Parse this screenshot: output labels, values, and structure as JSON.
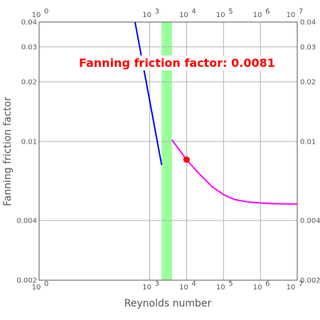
{
  "chart_data": {
    "type": "line",
    "xlabel": "Reynolds number",
    "ylabel": "Fanning friction factor",
    "x_scale": "log",
    "y_scale": "log",
    "xlim": [
      1,
      10000000
    ],
    "ylim": [
      0.002,
      0.04
    ],
    "grid": true,
    "x_ticks": [
      {
        "value": 1,
        "label": "10",
        "exp": "0"
      },
      {
        "value": 1000,
        "label": "10",
        "exp": "3"
      },
      {
        "value": 10000,
        "label": "10",
        "exp": "4"
      },
      {
        "value": 100000,
        "label": "10",
        "exp": "5"
      },
      {
        "value": 1000000,
        "label": "10",
        "exp": "6"
      },
      {
        "value": 10000000,
        "label": "10",
        "exp": "7"
      }
    ],
    "y_ticks": [
      {
        "value": 0.04,
        "label": "0.04"
      },
      {
        "value": 0.03,
        "label": "0.03"
      },
      {
        "value": 0.02,
        "label": "0.02"
      },
      {
        "value": 0.01,
        "label": "0.01"
      },
      {
        "value": 0.004,
        "label": "0.004"
      },
      {
        "value": 0.002,
        "label": "0.002"
      }
    ],
    "transition_band": {
      "x_from": 2100,
      "x_to": 4000,
      "color": "#99ff99"
    },
    "series": [
      {
        "color": "#0000ff",
        "x": [
          400,
          2100
        ],
        "y": [
          0.04,
          0.00762
        ]
      },
      {
        "color": "#ff00ff",
        "x": [
          4000,
          6000,
          10000,
          20000,
          50000,
          100000,
          200000,
          500000,
          1000000,
          2000000,
          5000000,
          10000000
        ],
        "y": [
          0.0102,
          0.0092,
          0.0081,
          0.007,
          0.0059,
          0.0054,
          0.0051,
          0.00495,
          0.0049,
          0.00487,
          0.00485,
          0.00484
        ]
      }
    ],
    "marker": {
      "x": 10000,
      "y": 0.0081,
      "color": "#ff0000"
    },
    "annotation": {
      "text": "Fanning friction factor: 0.0081",
      "color": "#ff0000"
    }
  }
}
